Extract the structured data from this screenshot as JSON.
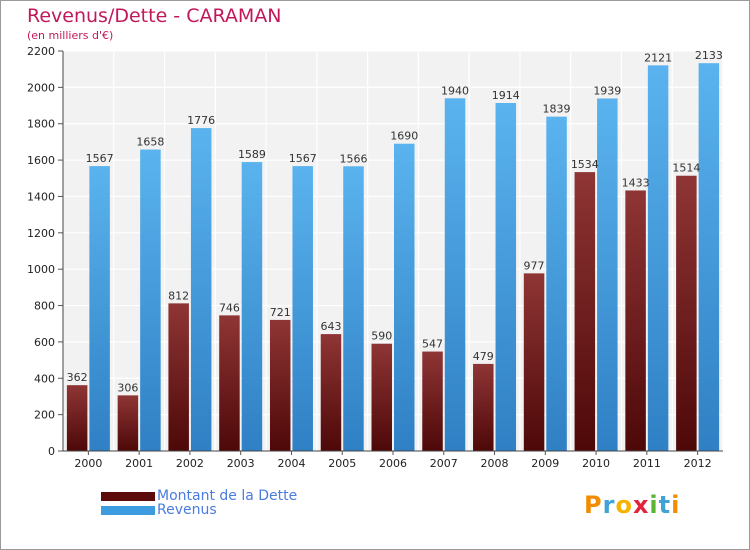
{
  "chart_data": {
    "type": "bar",
    "title": "Revenus/Dette - CARAMAN",
    "subtitle": "(en milliers d'€)",
    "categories": [
      "2000",
      "2001",
      "2002",
      "2003",
      "2004",
      "2005",
      "2006",
      "2007",
      "2008",
      "2009",
      "2010",
      "2011",
      "2012"
    ],
    "series": [
      {
        "name": "Montant de la Dette",
        "color": "#7a1f1f",
        "values": [
          362,
          306,
          812,
          746,
          721,
          643,
          590,
          547,
          479,
          977,
          1534,
          1433,
          1514
        ],
        "labels": [
          "362",
          "306",
          "812",
          "746",
          "721",
          "643",
          "590",
          "547",
          "479",
          "977",
          "1534",
          "1433",
          "1514"
        ]
      },
      {
        "name": "Revenus",
        "color": "#3d9be0",
        "values": [
          1567,
          1658,
          1776,
          1589,
          1567,
          1566,
          1690,
          1940,
          1914,
          1839,
          1939,
          2121,
          2133
        ],
        "labels": [
          "1567",
          "1658",
          "1776",
          "1589",
          "1567",
          "1566",
          "1690",
          "1940",
          "1914",
          "1839",
          "1939",
          "2121",
          "2133"
        ]
      }
    ],
    "ylim": [
      0,
      2200
    ],
    "yticks": [
      0,
      200,
      400,
      600,
      800,
      1000,
      1200,
      1400,
      1600,
      1800,
      2000,
      2200
    ],
    "grid": true,
    "legend": "bottom-left"
  },
  "legend": {
    "items": [
      {
        "label": "Montant de la Dette",
        "color": "#5c0a0a"
      },
      {
        "label": "Revenus",
        "color": "#3d9be0"
      }
    ]
  },
  "logo": {
    "text": "Proxiti",
    "letters": [
      {
        "ch": "P",
        "color": "#f28c00"
      },
      {
        "ch": "r",
        "color": "#3fa3d6"
      },
      {
        "ch": "o",
        "color": "#f5b400"
      },
      {
        "ch": "x",
        "color": "#e2233b"
      },
      {
        "ch": "i",
        "color": "#5bb432"
      },
      {
        "ch": "t",
        "color": "#3fa3d6"
      },
      {
        "ch": "i",
        "color": "#f28c00"
      }
    ]
  }
}
